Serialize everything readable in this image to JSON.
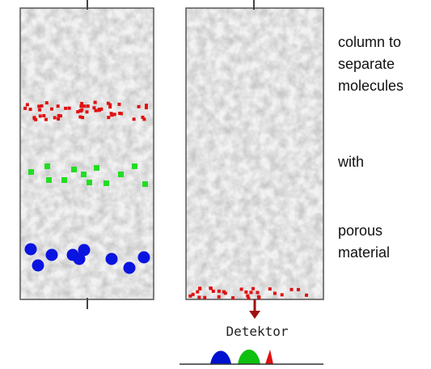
{
  "annotations": {
    "lines": [
      "column to",
      "separate",
      "molecules",
      "with",
      "porous",
      "material"
    ]
  },
  "detector": {
    "label": "Detektor"
  }
}
